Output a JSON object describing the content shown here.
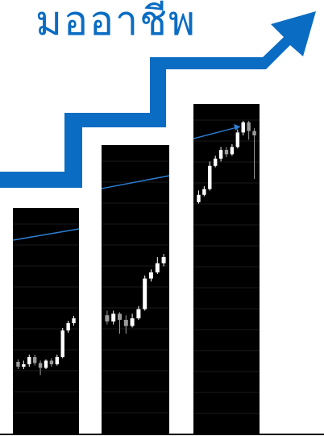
{
  "title": {
    "text": "มออาชีพ"
  },
  "colors": {
    "brand_blue": "#0a6cc2",
    "panel_bg": "#000000",
    "candle_up": "#ffffff",
    "candle_down": "#9a9a9a",
    "trend_line": "#2e7fd6",
    "grid": "#1a1a1a",
    "baseline": "#000000"
  },
  "icons": {
    "growth_arrow": "rising-step-arrow-icon"
  },
  "panels": [
    {
      "candles": [
        [
          0.54,
          0.5,
          0.56,
          0.48
        ],
        [
          0.5,
          0.52,
          0.55,
          0.48
        ],
        [
          0.52,
          0.58,
          0.6,
          0.5
        ],
        [
          0.58,
          0.53,
          0.6,
          0.51
        ],
        [
          0.53,
          0.49,
          0.55,
          0.43
        ],
        [
          0.49,
          0.55,
          0.56,
          0.48
        ],
        [
          0.55,
          0.52,
          0.57,
          0.5
        ],
        [
          0.52,
          0.58,
          0.6,
          0.51
        ],
        [
          0.58,
          0.8,
          0.82,
          0.57
        ],
        [
          0.8,
          0.86,
          0.88,
          0.78
        ],
        [
          0.86,
          0.9,
          0.92,
          0.84
        ]
      ]
    },
    {
      "candles": [
        [
          0.52,
          0.48,
          0.55,
          0.46
        ],
        [
          0.48,
          0.53,
          0.55,
          0.46
        ],
        [
          0.53,
          0.49,
          0.54,
          0.4
        ],
        [
          0.49,
          0.45,
          0.52,
          0.4
        ],
        [
          0.45,
          0.5,
          0.53,
          0.44
        ],
        [
          0.5,
          0.56,
          0.58,
          0.49
        ],
        [
          0.56,
          0.76,
          0.78,
          0.55
        ],
        [
          0.76,
          0.8,
          0.82,
          0.74
        ],
        [
          0.8,
          0.86,
          0.9,
          0.79
        ],
        [
          0.86,
          0.9,
          0.92,
          0.84
        ]
      ]
    },
    {
      "candles": [
        [
          0.44,
          0.49,
          0.52,
          0.43
        ],
        [
          0.49,
          0.53,
          0.55,
          0.48
        ],
        [
          0.53,
          0.69,
          0.72,
          0.52
        ],
        [
          0.69,
          0.74,
          0.76,
          0.68
        ],
        [
          0.74,
          0.8,
          0.82,
          0.72
        ],
        [
          0.8,
          0.77,
          0.82,
          0.75
        ],
        [
          0.77,
          0.82,
          0.84,
          0.76
        ],
        [
          0.82,
          0.92,
          0.94,
          0.81
        ],
        [
          0.92,
          0.99,
          1.0,
          0.9
        ],
        [
          0.99,
          0.93,
          1.0,
          0.87
        ],
        [
          0.93,
          0.9,
          0.95,
          0.6
        ]
      ]
    }
  ]
}
